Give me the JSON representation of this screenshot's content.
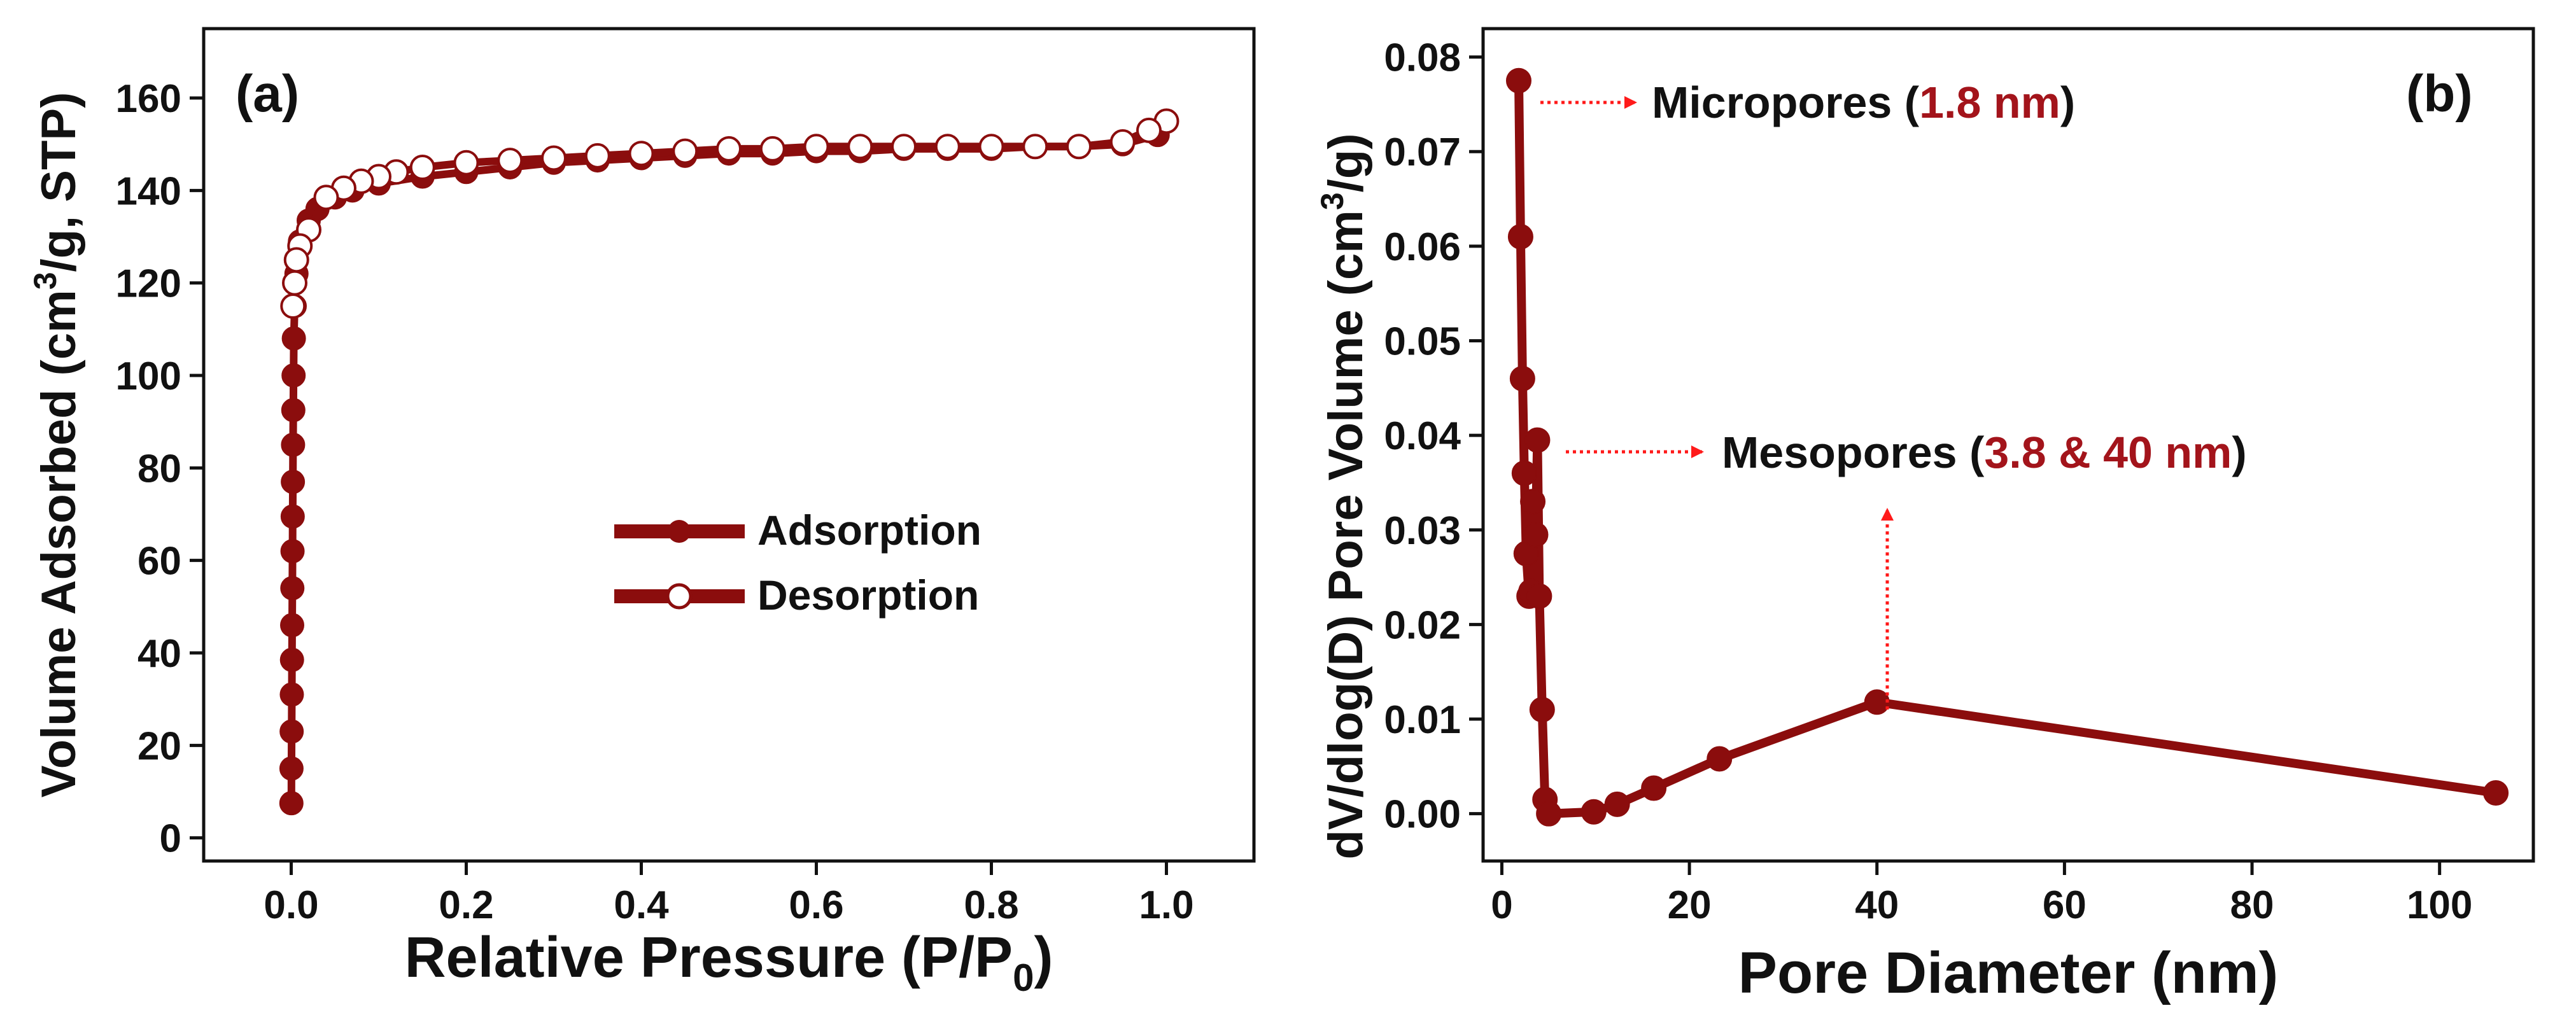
{
  "colors": {
    "series": "#8b0d0d",
    "annotation": "#ff1a1a",
    "highlight": "#a3141b",
    "axis": "#111111"
  },
  "panel_a": {
    "label": "(a)",
    "legend": {
      "adsorption": "Adsorption",
      "desorption": "Desorption"
    },
    "xlabel": {
      "main": "Relative Pressure (P/P",
      "sub": "0",
      "close": ")"
    },
    "ylabel": {
      "pre": "Volume Adsorbed (cm",
      "sup": "3",
      "post": "/g, STP)"
    }
  },
  "panel_b": {
    "label": "(b)",
    "xlabel": "Pore Diameter (nm)",
    "ylabel": {
      "pre": "dV/dlog(D) Pore Volume (cm",
      "sup": "3",
      "post": "/g)"
    },
    "micro": {
      "pre": "Micropores (",
      "val": "1.8 nm",
      "post": ")"
    },
    "meso": {
      "pre": "Mesopores (",
      "val": "3.8 & 40 nm",
      "post": ")"
    }
  },
  "chart_data": [
    {
      "type": "scatter",
      "title": "(a)",
      "xlabel": "Relative Pressure (P/P0)",
      "ylabel": "Volume Adsorbed (cm3/g, STP)",
      "xlim": [
        -0.1,
        1.1
      ],
      "ylim": [
        -5,
        175
      ],
      "xticks": [
        0.0,
        0.2,
        0.4,
        0.6,
        0.8,
        1.0
      ],
      "xtick_labels": [
        "0.0",
        "0.2",
        "0.4",
        "0.6",
        "0.8",
        "1.0"
      ],
      "yticks": [
        0,
        20,
        40,
        60,
        80,
        100,
        120,
        140,
        160
      ],
      "ytick_labels": [
        "0",
        "20",
        "40",
        "60",
        "80",
        "100",
        "120",
        "140",
        "160"
      ],
      "legend_position": "center-right",
      "series": [
        {
          "name": "Adsorption",
          "marker": "filled-circle",
          "x": [
            0.0002,
            0.0003,
            0.0005,
            0.0007,
            0.0009,
            0.0011,
            0.0013,
            0.0015,
            0.0017,
            0.0019,
            0.0021,
            0.0024,
            0.0027,
            0.003,
            0.004,
            0.006,
            0.01,
            0.02,
            0.03,
            0.05,
            0.07,
            0.1,
            0.15,
            0.2,
            0.25,
            0.3,
            0.35,
            0.4,
            0.45,
            0.5,
            0.55,
            0.6,
            0.65,
            0.7,
            0.75,
            0.8,
            0.85,
            0.9,
            0.95,
            0.99
          ],
          "y": [
            7.5,
            15,
            23,
            31,
            38.5,
            46,
            54,
            62,
            69.5,
            77,
            85,
            92.5,
            100,
            108,
            115,
            122,
            129,
            133.5,
            136,
            138.5,
            140,
            141.5,
            143,
            144,
            145,
            146,
            146.5,
            147,
            147.5,
            148,
            148,
            148.5,
            148.5,
            149,
            149,
            149,
            149.5,
            149.5,
            150,
            152
          ]
        },
        {
          "name": "Desorption",
          "marker": "open-circle",
          "x": [
            1.0,
            0.98,
            0.95,
            0.9,
            0.85,
            0.8,
            0.75,
            0.7,
            0.65,
            0.6,
            0.55,
            0.5,
            0.45,
            0.4,
            0.35,
            0.3,
            0.25,
            0.2,
            0.15,
            0.12,
            0.1,
            0.08,
            0.06,
            0.04,
            0.02,
            0.01,
            0.006,
            0.004,
            0.002
          ],
          "y": [
            155,
            153,
            150.5,
            149.5,
            149.5,
            149.5,
            149.5,
            149.5,
            149.5,
            149.5,
            149,
            149,
            148.5,
            148,
            147.5,
            147,
            146.5,
            146,
            145,
            144,
            143,
            142,
            140.5,
            138.5,
            131.5,
            128,
            125,
            120,
            115
          ]
        }
      ]
    },
    {
      "type": "line",
      "title": "(b)",
      "xlabel": "Pore Diameter (nm)",
      "ylabel": "dV/dlog(D) Pore Volume (cm3/g)",
      "xlim": [
        -2,
        110
      ],
      "ylim": [
        -0.005,
        0.083
      ],
      "xticks": [
        0,
        20,
        40,
        60,
        80,
        100
      ],
      "xtick_labels": [
        "0",
        "20",
        "40",
        "60",
        "80",
        "100"
      ],
      "yticks": [
        0.0,
        0.01,
        0.02,
        0.03,
        0.04,
        0.05,
        0.06,
        0.07,
        0.08
      ],
      "ytick_labels": [
        "0.00",
        "0.01",
        "0.02",
        "0.03",
        "0.04",
        "0.05",
        "0.06",
        "0.07",
        "0.08"
      ],
      "series": [
        {
          "name": "Pore size distribution",
          "marker": "filled-circle",
          "x": [
            1.8,
            2.0,
            2.2,
            2.4,
            2.6,
            2.9,
            3.1,
            3.3,
            3.6,
            3.8,
            4.0,
            4.3,
            4.6,
            5.0,
            9.8,
            12.3,
            16.2,
            23.2,
            40.0,
            106.0
          ],
          "y": [
            0.0775,
            0.061,
            0.046,
            0.036,
            0.0275,
            0.023,
            0.0235,
            0.033,
            0.0295,
            0.0395,
            0.023,
            0.011,
            0.0015,
            0.0,
            0.0002,
            0.001,
            0.0027,
            0.0058,
            0.0118,
            0.0022
          ]
        }
      ],
      "annotations": [
        {
          "text": "Micropores (1.8 nm)",
          "points_to": [
            1.8,
            0.0775
          ]
        },
        {
          "text": "Mesopores (3.8 & 40 nm)",
          "points_to": [
            [
              3.8,
              0.0395
            ],
            [
              40.0,
              0.0118
            ]
          ]
        }
      ]
    }
  ]
}
